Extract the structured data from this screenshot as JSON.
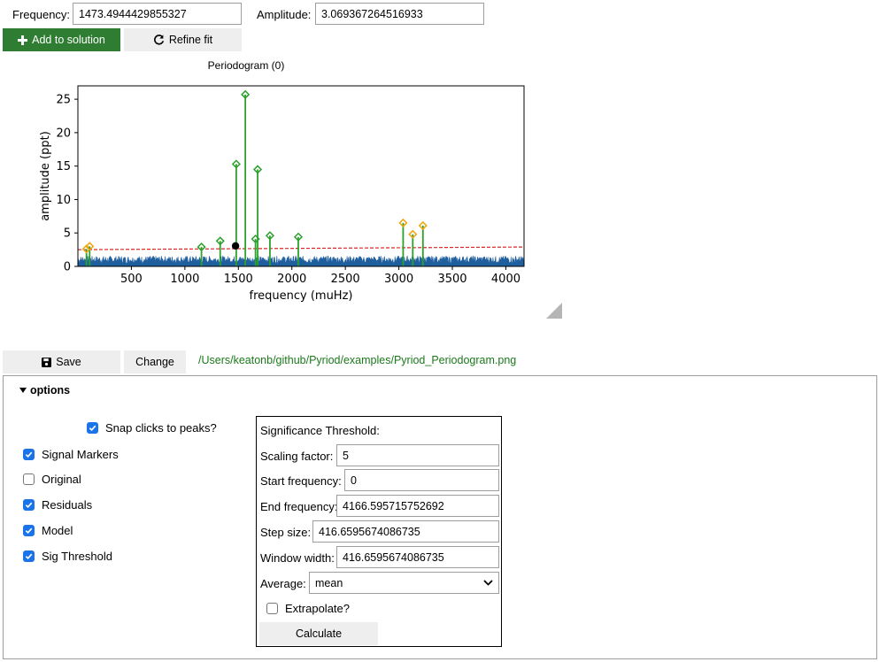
{
  "top": {
    "frequency_label": "Frequency:",
    "frequency_value": "1473.4944429855327",
    "amplitude_label": "Amplitude:",
    "amplitude_value": "3.069367264516933",
    "add_label": "Add to solution",
    "refine_label": "Refine fit"
  },
  "chart_data": {
    "type": "line",
    "title": "Periodogram (0)",
    "xlabel": "frequency (muHz)",
    "ylabel": "amplitude (ppt)",
    "xlim": [
      0,
      4170
    ],
    "ylim": [
      0,
      27
    ],
    "x_ticks": [
      500,
      1000,
      1500,
      2000,
      2500,
      3000,
      3500,
      4000
    ],
    "y_ticks": [
      0,
      5,
      10,
      15,
      20,
      25
    ],
    "noise_level": 1.2,
    "threshold": {
      "start": 2.5,
      "end": 2.9,
      "color": "#d62728"
    },
    "residual_color": "#1f5f9e",
    "signals": [
      {
        "x": 80,
        "y": 2.6,
        "color": "#f0a30a"
      },
      {
        "x": 110,
        "y": 3.0,
        "color": "#f0a30a"
      },
      {
        "x": 1155,
        "y": 2.9,
        "color": "#2ca02c"
      },
      {
        "x": 1330,
        "y": 3.8,
        "color": "#2ca02c"
      },
      {
        "x": 1480,
        "y": 15.3,
        "color": "#2ca02c"
      },
      {
        "x": 1565,
        "y": 25.7,
        "color": "#2ca02c"
      },
      {
        "x": 1660,
        "y": 4.1,
        "color": "#2ca02c"
      },
      {
        "x": 1680,
        "y": 14.5,
        "color": "#2ca02c"
      },
      {
        "x": 1795,
        "y": 4.6,
        "color": "#2ca02c"
      },
      {
        "x": 2060,
        "y": 4.4,
        "color": "#2ca02c"
      },
      {
        "x": 3040,
        "y": 6.5,
        "color": "#f0a30a"
      },
      {
        "x": 3130,
        "y": 4.8,
        "color": "#f0a30a"
      },
      {
        "x": 3225,
        "y": 6.1,
        "color": "#f0a30a"
      }
    ],
    "selected_point": {
      "x": 1473.5,
      "y": 3.07
    }
  },
  "save": {
    "save_label": "Save",
    "change_label": "Change",
    "path": "/Users/keatonb/github/Pyriod/examples/Pyriod_Periodogram.png"
  },
  "options": {
    "header": "options",
    "snap_label": "Snap clicks to peaks?",
    "checkboxes": [
      {
        "label": "Signal Markers",
        "checked": true
      },
      {
        "label": "Original",
        "checked": false
      },
      {
        "label": "Residuals",
        "checked": true
      },
      {
        "label": "Model",
        "checked": true
      },
      {
        "label": "Sig Threshold",
        "checked": true
      }
    ]
  },
  "significance": {
    "title": "Significance Threshold:",
    "scaling_label": "Scaling factor:",
    "scaling_value": "5",
    "start_label": "Start frequency:",
    "start_value": "0",
    "end_label": "End frequency:",
    "end_value": "4166.595715752692",
    "step_label": "Step size:",
    "step_value": "416.6595674086735",
    "window_label": "Window width:",
    "window_value": "416.6595674086735",
    "average_label": "Average:",
    "average_value": "mean",
    "extrapolate_label": "Extrapolate?",
    "calculate_label": "Calculate"
  }
}
